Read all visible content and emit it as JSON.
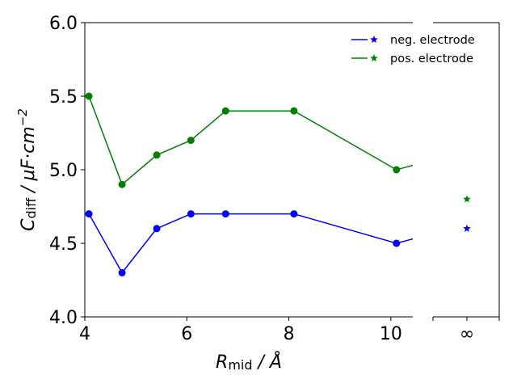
{
  "chart_data": {
    "type": "line",
    "xlabel": {
      "main": "R",
      "sub": "mid",
      "unit": " / Å"
    },
    "ylabel": {
      "main": "C",
      "sub": "diff",
      "unit": " / μF·cm",
      "sup": "−2"
    },
    "xlim": [
      4.0,
      10.43
    ],
    "ylim": [
      4.0,
      6.0
    ],
    "xticks": [
      4,
      6,
      8,
      10
    ],
    "xtick_labels": [
      "4",
      "6",
      "8",
      "10"
    ],
    "yticks": [
      4.0,
      4.5,
      5.0,
      5.5,
      6.0
    ],
    "ytick_labels": [
      "4.0",
      "4.5",
      "5.0",
      "5.5",
      "6.0"
    ],
    "grid": false,
    "legend_position": "top-right",
    "x": [
      4.08,
      4.73,
      5.41,
      6.08,
      6.76,
      8.1,
      10.11,
      10.75
    ],
    "series": [
      {
        "name": "neg. electrode",
        "color": "#0000ff",
        "values": [
          4.7,
          4.3,
          4.6,
          4.7,
          4.7,
          4.7,
          4.5,
          4.56
        ],
        "limit_value": 4.6
      },
      {
        "name": "pos. electrode",
        "color": "#008000",
        "values": [
          5.5,
          4.9,
          5.1,
          5.2,
          5.4,
          5.4,
          5.0,
          5.06
        ],
        "limit_value": 4.8
      }
    ],
    "limit_axis": {
      "tick_label": "∞"
    }
  }
}
